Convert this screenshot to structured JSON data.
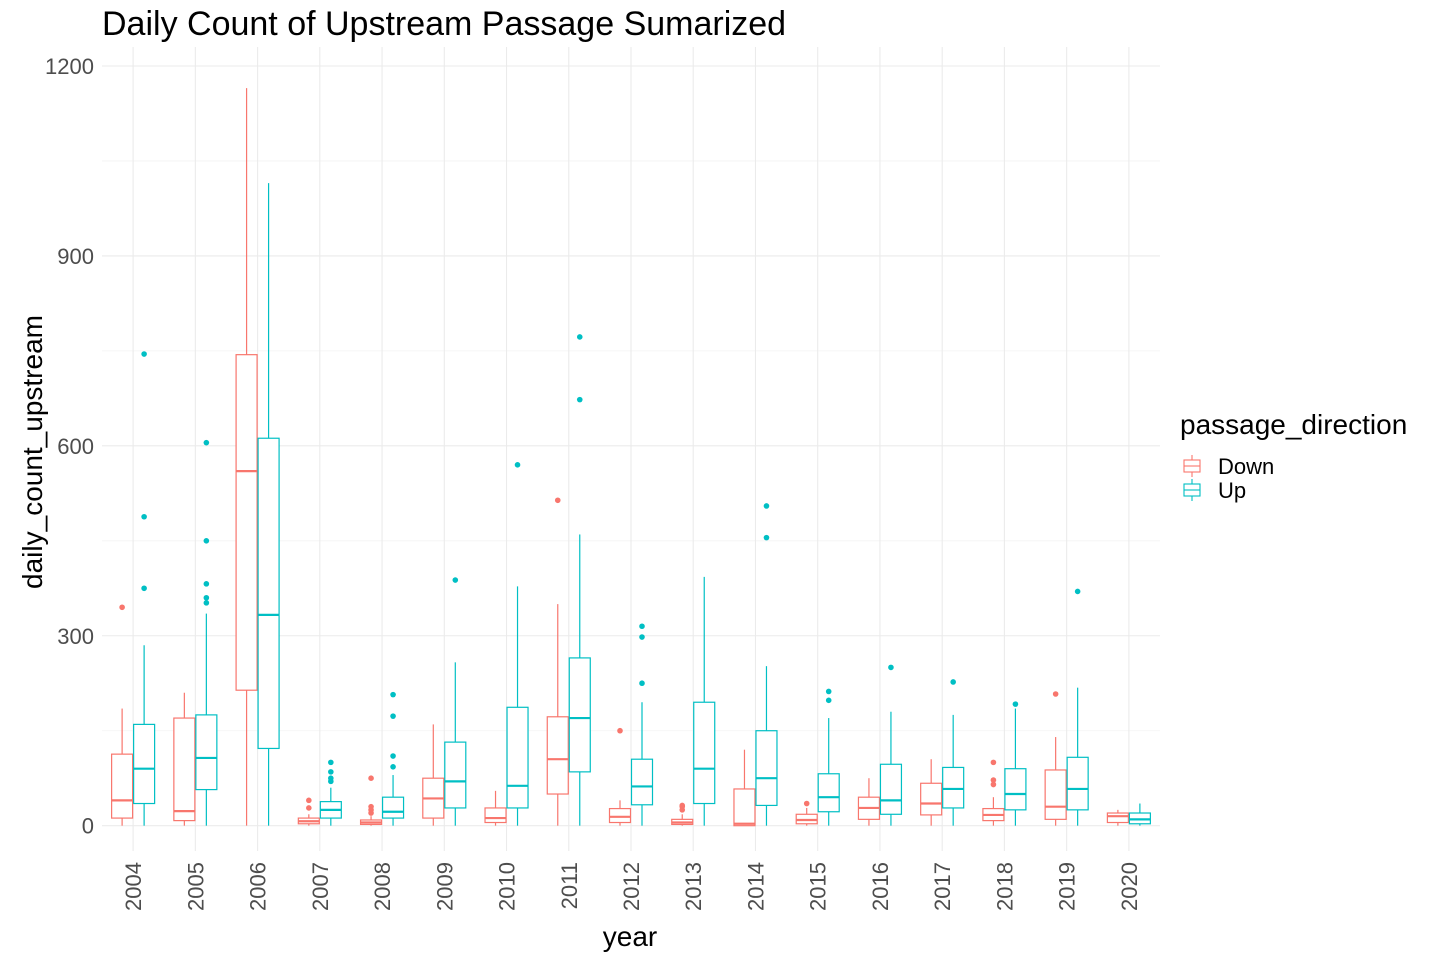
{
  "chart_data": {
    "type": "boxplot",
    "title": "Daily Count of Upstream Passage Sumarized",
    "xlabel": "year",
    "ylabel": "daily_count_upstream",
    "ylim": [
      -40,
      1230
    ],
    "yticks": [
      0,
      300,
      600,
      900,
      1200
    ],
    "grid": true,
    "legend": {
      "title": "passage_direction",
      "placement": "right",
      "entries": [
        {
          "label": "Down",
          "color": "#F8766D"
        },
        {
          "label": "Up",
          "color": "#00BFC4"
        }
      ]
    },
    "categories": [
      "2004",
      "2005",
      "2006",
      "2007",
      "2008",
      "2009",
      "2010",
      "2011",
      "2012",
      "2013",
      "2014",
      "2015",
      "2016",
      "2017",
      "2018",
      "2019",
      "2020"
    ],
    "series": [
      {
        "name": "Down",
        "color": "#F8766D",
        "boxes": [
          {
            "min": 0,
            "q1": 12,
            "median": 40,
            "q3": 113,
            "max": 185,
            "outliers": [
              345
            ]
          },
          {
            "min": 0,
            "q1": 8,
            "median": 23,
            "q3": 170,
            "max": 210,
            "outliers": []
          },
          {
            "min": 0,
            "q1": 214,
            "median": 560,
            "q3": 744,
            "max": 1165,
            "outliers": []
          },
          {
            "min": 0,
            "q1": 3,
            "median": 7,
            "q3": 12,
            "max": 18,
            "outliers": [
              28,
              40
            ]
          },
          {
            "min": 0,
            "q1": 2,
            "median": 5,
            "q3": 9,
            "max": 15,
            "outliers": [
              20,
              25,
              30,
              75
            ]
          },
          {
            "min": 0,
            "q1": 12,
            "median": 43,
            "q3": 75,
            "max": 160,
            "outliers": []
          },
          {
            "min": 0,
            "q1": 5,
            "median": 12,
            "q3": 28,
            "max": 55,
            "outliers": []
          },
          {
            "min": 0,
            "q1": 50,
            "median": 105,
            "q3": 172,
            "max": 350,
            "outliers": [
              514
            ]
          },
          {
            "min": 0,
            "q1": 5,
            "median": 14,
            "q3": 27,
            "max": 40,
            "outliers": [
              150
            ]
          },
          {
            "min": 0,
            "q1": 2,
            "median": 5,
            "q3": 10,
            "max": 18,
            "outliers": [
              25,
              30,
              32
            ]
          },
          {
            "min": 0,
            "q1": 0,
            "median": 3,
            "q3": 58,
            "max": 120,
            "outliers": []
          },
          {
            "min": 0,
            "q1": 3,
            "median": 9,
            "q3": 18,
            "max": 28,
            "outliers": [
              35
            ]
          },
          {
            "min": 0,
            "q1": 10,
            "median": 28,
            "q3": 45,
            "max": 75,
            "outliers": []
          },
          {
            "min": 0,
            "q1": 17,
            "median": 35,
            "q3": 67,
            "max": 105,
            "outliers": []
          },
          {
            "min": 0,
            "q1": 8,
            "median": 17,
            "q3": 27,
            "max": 45,
            "outliers": [
              65,
              72,
              100
            ]
          },
          {
            "min": 0,
            "q1": 10,
            "median": 30,
            "q3": 88,
            "max": 140,
            "outliers": [
              208
            ]
          },
          {
            "min": 0,
            "q1": 5,
            "median": 15,
            "q3": 20,
            "max": 25,
            "outliers": []
          }
        ]
      },
      {
        "name": "Up",
        "color": "#00BFC4",
        "boxes": [
          {
            "min": 0,
            "q1": 35,
            "median": 90,
            "q3": 160,
            "max": 285,
            "outliers": [
              375,
              488,
              745
            ]
          },
          {
            "min": 0,
            "q1": 57,
            "median": 107,
            "q3": 175,
            "max": 335,
            "outliers": [
              352,
              360,
              382,
              450,
              605
            ]
          },
          {
            "min": 0,
            "q1": 122,
            "median": 333,
            "q3": 612,
            "max": 1015,
            "outliers": []
          },
          {
            "min": 0,
            "q1": 12,
            "median": 25,
            "q3": 38,
            "max": 60,
            "outliers": [
              70,
              75,
              85,
              100
            ]
          },
          {
            "min": 0,
            "q1": 12,
            "median": 22,
            "q3": 45,
            "max": 80,
            "outliers": [
              93,
              110,
              173,
              207
            ]
          },
          {
            "min": 0,
            "q1": 28,
            "median": 70,
            "q3": 132,
            "max": 258,
            "outliers": [
              388
            ]
          },
          {
            "min": 0,
            "q1": 28,
            "median": 63,
            "q3": 187,
            "max": 378,
            "outliers": [
              570
            ]
          },
          {
            "min": 0,
            "q1": 85,
            "median": 170,
            "q3": 265,
            "max": 460,
            "outliers": [
              673,
              772
            ]
          },
          {
            "min": 0,
            "q1": 33,
            "median": 62,
            "q3": 105,
            "max": 195,
            "outliers": [
              225,
              298,
              315
            ]
          },
          {
            "min": 0,
            "q1": 35,
            "median": 90,
            "q3": 195,
            "max": 393,
            "outliers": []
          },
          {
            "min": 0,
            "q1": 32,
            "median": 75,
            "q3": 150,
            "max": 252,
            "outliers": [
              455,
              505
            ]
          },
          {
            "min": 0,
            "q1": 22,
            "median": 45,
            "q3": 82,
            "max": 170,
            "outliers": [
              198,
              212
            ]
          },
          {
            "min": 0,
            "q1": 18,
            "median": 40,
            "q3": 97,
            "max": 180,
            "outliers": [
              250
            ]
          },
          {
            "min": 0,
            "q1": 28,
            "median": 58,
            "q3": 92,
            "max": 175,
            "outliers": [
              227
            ]
          },
          {
            "min": 0,
            "q1": 25,
            "median": 50,
            "q3": 90,
            "max": 185,
            "outliers": [
              192
            ]
          },
          {
            "min": 0,
            "q1": 25,
            "median": 58,
            "q3": 108,
            "max": 218,
            "outliers": [
              370
            ]
          },
          {
            "min": 0,
            "q1": 3,
            "median": 10,
            "q3": 20,
            "max": 35,
            "outliers": []
          }
        ]
      }
    ]
  }
}
